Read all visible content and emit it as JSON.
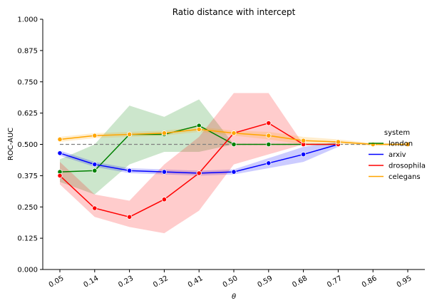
{
  "chart_data": {
    "type": "line",
    "title": "Ratio distance with intercept",
    "xlabel": "θ",
    "ylabel": "ROC-AUC",
    "x_ticks": [
      "0.05",
      "0.14",
      "0.23",
      "0.32",
      "0.41",
      "0.50",
      "0.59",
      "0.68",
      "0.77",
      "0.86",
      "0.95"
    ],
    "y_ticks": [
      "0.000",
      "0.125",
      "0.250",
      "0.375",
      "0.500",
      "0.625",
      "0.750",
      "0.875",
      "1.000"
    ],
    "ylim": [
      0,
      1
    ],
    "grid": false,
    "baseline": 0.5,
    "legend": {
      "title": "system",
      "position": "right"
    },
    "series": [
      {
        "name": "london",
        "color": "#008000",
        "values": [
          0.39,
          0.395,
          0.54,
          0.54,
          0.575,
          0.5,
          0.5,
          0.5,
          0.5,
          null,
          null
        ],
        "lower": [
          0.35,
          0.3,
          0.42,
          0.47,
          0.47,
          0.5,
          0.5,
          0.5,
          0.5,
          null,
          null
        ],
        "upper": [
          0.44,
          0.5,
          0.655,
          0.61,
          0.68,
          0.5,
          0.5,
          0.5,
          0.5,
          null,
          null
        ]
      },
      {
        "name": "arxiv",
        "color": "#0000ff",
        "values": [
          0.465,
          0.42,
          0.395,
          0.39,
          0.385,
          0.39,
          0.425,
          0.46,
          0.5,
          null,
          null
        ],
        "lower": [
          0.455,
          0.41,
          0.385,
          0.38,
          0.375,
          0.38,
          0.405,
          0.43,
          0.49,
          null,
          null
        ],
        "upper": [
          0.475,
          0.43,
          0.405,
          0.4,
          0.395,
          0.4,
          0.445,
          0.49,
          0.51,
          null,
          null
        ]
      },
      {
        "name": "drosophila",
        "color": "#ff0000",
        "values": [
          0.375,
          0.245,
          0.21,
          0.28,
          0.385,
          0.545,
          0.585,
          0.5,
          0.5,
          null,
          null
        ],
        "lower": [
          0.34,
          0.21,
          0.17,
          0.145,
          0.235,
          0.42,
          0.46,
          0.5,
          0.5,
          null,
          null
        ],
        "upper": [
          0.43,
          0.3,
          0.275,
          0.42,
          0.53,
          0.705,
          0.705,
          0.5,
          0.5,
          null,
          null
        ]
      },
      {
        "name": "celegans",
        "color": "#ffa500",
        "values": [
          0.52,
          0.535,
          0.54,
          0.545,
          0.56,
          0.545,
          0.535,
          0.515,
          0.51,
          0.5,
          0.5
        ],
        "lower": [
          0.51,
          0.525,
          0.53,
          0.535,
          0.55,
          0.535,
          0.52,
          0.5,
          0.5,
          0.495,
          0.495
        ],
        "upper": [
          0.53,
          0.545,
          0.55,
          0.555,
          0.57,
          0.555,
          0.55,
          0.53,
          0.52,
          0.505,
          0.505
        ]
      }
    ]
  }
}
